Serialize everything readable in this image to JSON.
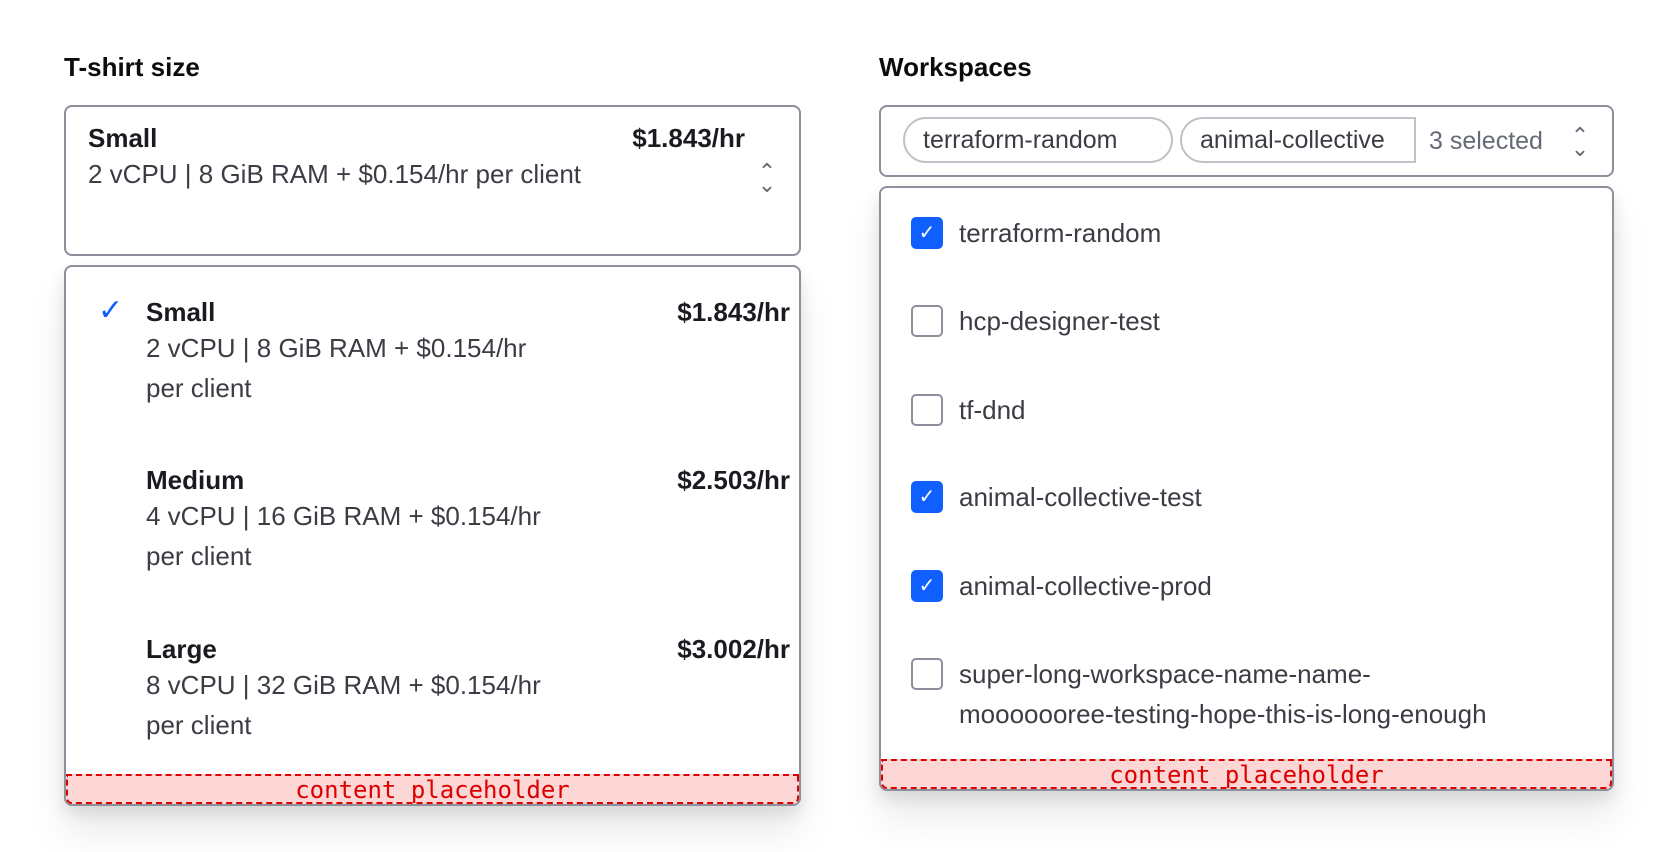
{
  "tshirt": {
    "label": "T-shirt size",
    "selected": {
      "name": "Small",
      "price": "$1.843/hr",
      "description": "2 vCPU | 8 GiB RAM + $0.154/hr per client"
    },
    "options": [
      {
        "name": "Small",
        "price": "$1.843/hr",
        "line1": "2 vCPU | 8 GiB RAM + $0.154/hr",
        "line2": "per client",
        "selected": true
      },
      {
        "name": "Medium",
        "price": "$2.503/hr",
        "line1": "4 vCPU | 16 GiB RAM + $0.154/hr",
        "line2": "per client",
        "selected": false
      },
      {
        "name": "Large",
        "price": "$3.002/hr",
        "line1": "8 vCPU | 32 GiB RAM + $0.154/hr",
        "line2": "per client",
        "selected": false
      }
    ],
    "placeholder": "content placeholder"
  },
  "workspaces": {
    "label": "Workspaces",
    "tags": [
      "terraform-random",
      "animal-collective"
    ],
    "count_text": "3 selected",
    "items": [
      {
        "label": "terraform-random",
        "checked": true
      },
      {
        "label": "hcp-designer-test",
        "checked": false
      },
      {
        "label": "tf-dnd",
        "checked": false
      },
      {
        "label": "animal-collective-test",
        "checked": true
      },
      {
        "label": "animal-collective-prod",
        "checked": true
      },
      {
        "label": "super-long-workspace-name-name-mooooooree-testing-hope-this-is-long-enough",
        "checked": false
      }
    ],
    "placeholder": "content placeholder"
  },
  "colors": {
    "accent": "#1060ff",
    "border": "#8c909c",
    "placeholder_bg": "#fdd6d6",
    "placeholder_text": "#dd0000"
  }
}
